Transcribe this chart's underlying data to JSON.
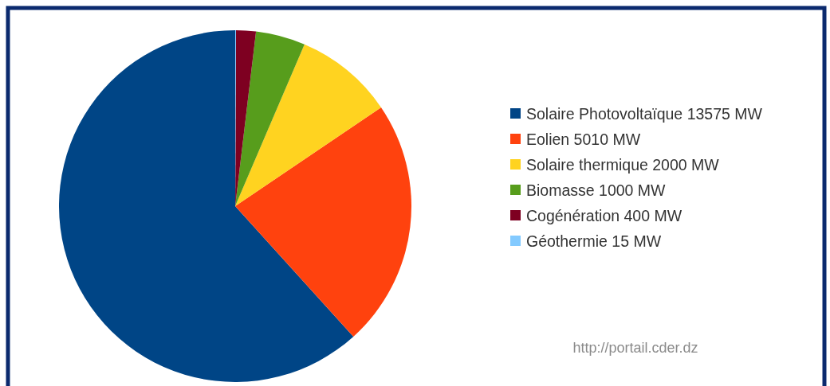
{
  "chart_data": {
    "type": "pie",
    "categories": [
      "Solaire Photovoltaïque 13575 MW",
      "Eolien 5010 MW",
      "Solaire thermique 2000 MW",
      "Biomasse 1000 MW",
      "Cogénération 400 MW",
      "Géothermie 15 MW"
    ],
    "values": [
      13575,
      5010,
      2000,
      1000,
      400,
      15
    ],
    "colors": [
      "#004586",
      "#ff420e",
      "#ffd320",
      "#579d1c",
      "#7e0021",
      "#83caff"
    ],
    "legend": "right",
    "annotations": [
      "http://portail.cder.dz"
    ]
  }
}
